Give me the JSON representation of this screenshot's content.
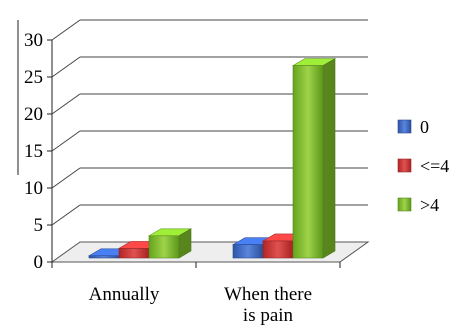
{
  "chart_data": {
    "type": "bar",
    "style": "3d-clustered-column",
    "categories": [
      [
        "Annually"
      ],
      [
        "When there",
        "is pain"
      ]
    ],
    "series": [
      {
        "name": "0",
        "color": "#3a66c4",
        "values": [
          0.3,
          1.8
        ]
      },
      {
        "name": "<=4",
        "color": "#d03a3a",
        "values": [
          1.3,
          2.3
        ]
      },
      {
        "name": ">4",
        "color": "#7fbe2c",
        "values": [
          3.0,
          26.0
        ]
      }
    ],
    "ylim": [
      0,
      30
    ],
    "yticks": [
      0,
      5,
      10,
      15,
      20,
      25,
      30
    ],
    "grid": true,
    "legend_position": "right"
  }
}
